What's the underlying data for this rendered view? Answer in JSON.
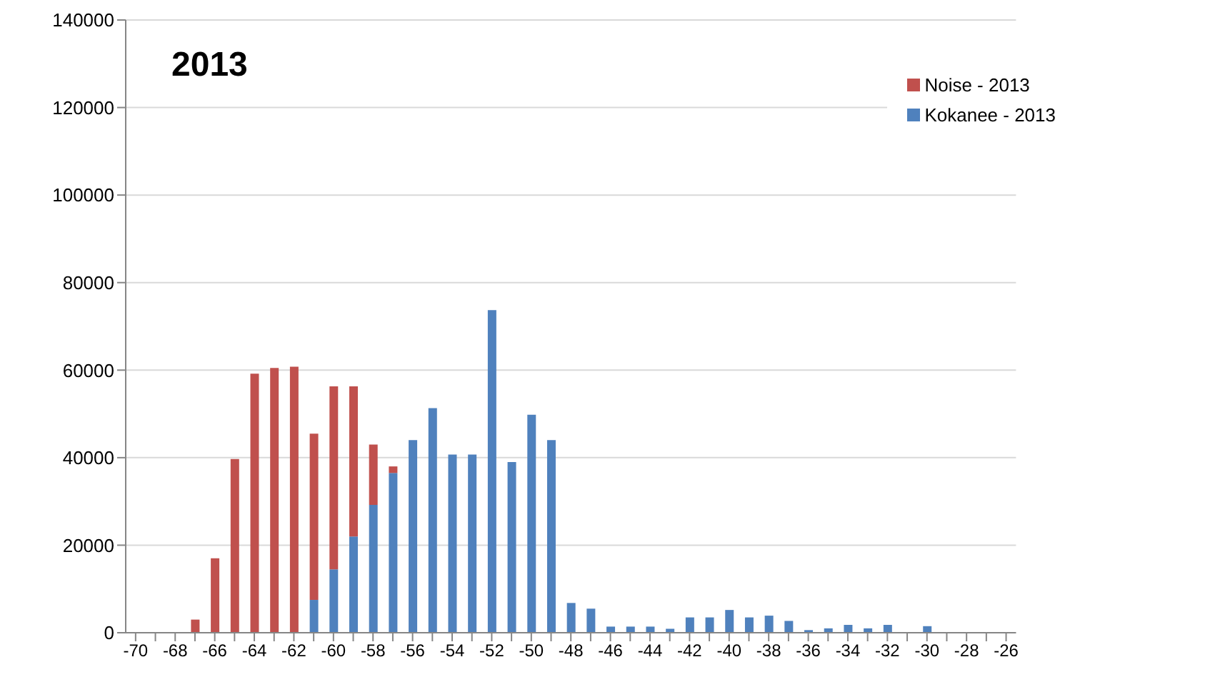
{
  "chart_data": {
    "type": "bar",
    "title": "2013",
    "stacked": true,
    "categories": [
      "-70",
      null,
      "-68",
      null,
      "-66",
      null,
      "-64",
      null,
      "-62",
      null,
      "-60",
      null,
      "-58",
      null,
      "-56",
      null,
      "-54",
      null,
      "-52",
      null,
      "-50",
      null,
      "-48",
      null,
      "-46",
      null,
      "-44",
      null,
      "-42",
      null,
      "-40",
      null,
      "-38",
      null,
      "-36",
      null,
      "-34",
      null,
      "-32",
      null,
      "-30",
      null,
      "-28",
      null,
      "-26"
    ],
    "series": [
      {
        "name": "Kokanee - 2013",
        "color": "#4f81bd",
        "values": [
          0,
          0,
          0,
          0,
          0,
          0,
          0,
          0,
          0,
          7500,
          14500,
          22000,
          29200,
          36500,
          44000,
          51300,
          40700,
          40700,
          73700,
          39000,
          49800,
          44000,
          6800,
          5500,
          1400,
          1400,
          1400,
          900,
          3500,
          3500,
          5200,
          3500,
          3900,
          2700,
          600,
          1000,
          1800,
          1000,
          1800,
          null,
          1500,
          0,
          0,
          0,
          0
        ]
      },
      {
        "name": "Noise - 2013",
        "color": "#c0504d",
        "values": [
          0,
          null,
          null,
          3000,
          17000,
          39700,
          59200,
          60500,
          60800,
          38000,
          41800,
          34300,
          13800,
          1500,
          0,
          0,
          0,
          0,
          0,
          0,
          0,
          0,
          0,
          0,
          0,
          0,
          0,
          0,
          0,
          0,
          0,
          0,
          0,
          0,
          0,
          0,
          0,
          0,
          0,
          0,
          0,
          0,
          0,
          0,
          0
        ]
      }
    ],
    "ylim": [
      0,
      140000
    ],
    "yticks": [
      0,
      20000,
      40000,
      60000,
      80000,
      100000,
      120000,
      140000
    ],
    "grid": "y",
    "legend": "top right"
  }
}
